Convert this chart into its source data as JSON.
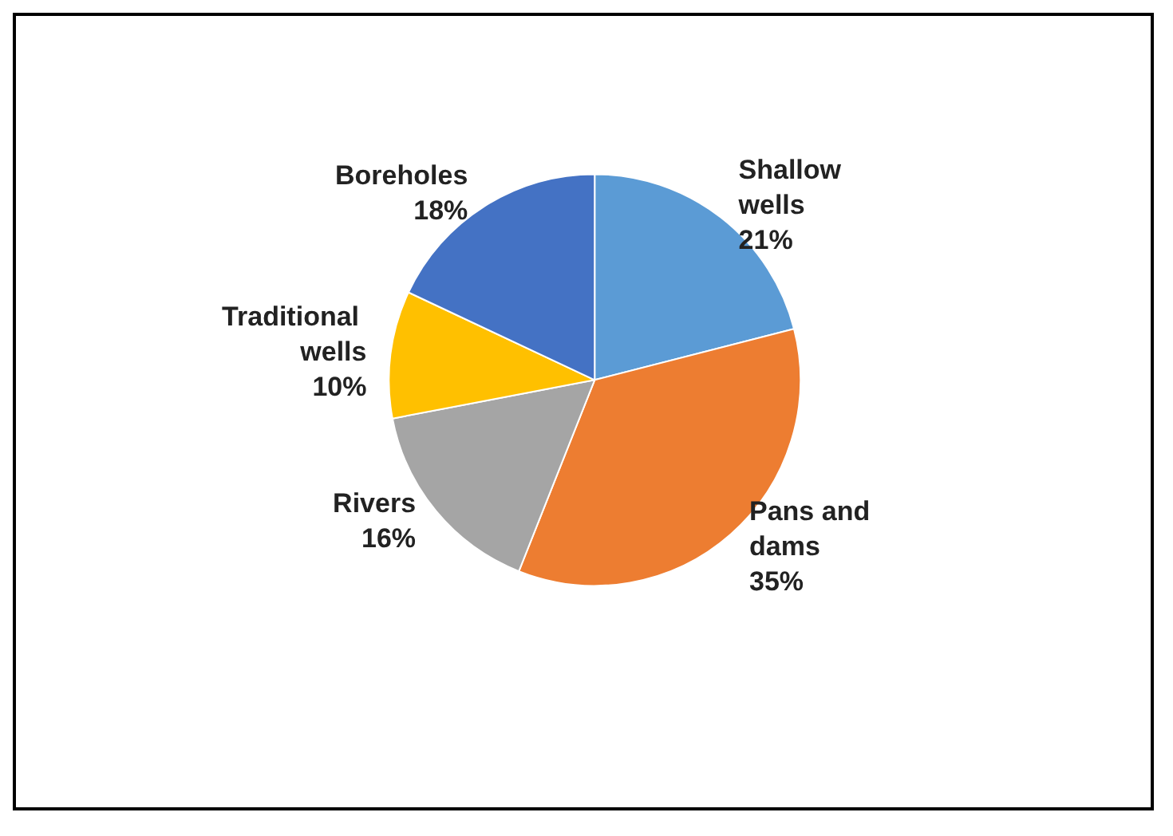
{
  "chart_data": {
    "type": "pie",
    "categories": [
      "Shallow wells",
      "Pans and dams",
      "Rivers",
      "Traditional wells",
      "Boreholes"
    ],
    "values": [
      21,
      35,
      16,
      10,
      18
    ],
    "colors": [
      "#5b9bd5",
      "#ed7d31",
      "#a5a5a5",
      "#ffc000",
      "#4472c4"
    ],
    "value_labels": [
      "21%",
      "35%",
      "16%",
      "10%",
      "18%"
    ],
    "legend": false
  }
}
